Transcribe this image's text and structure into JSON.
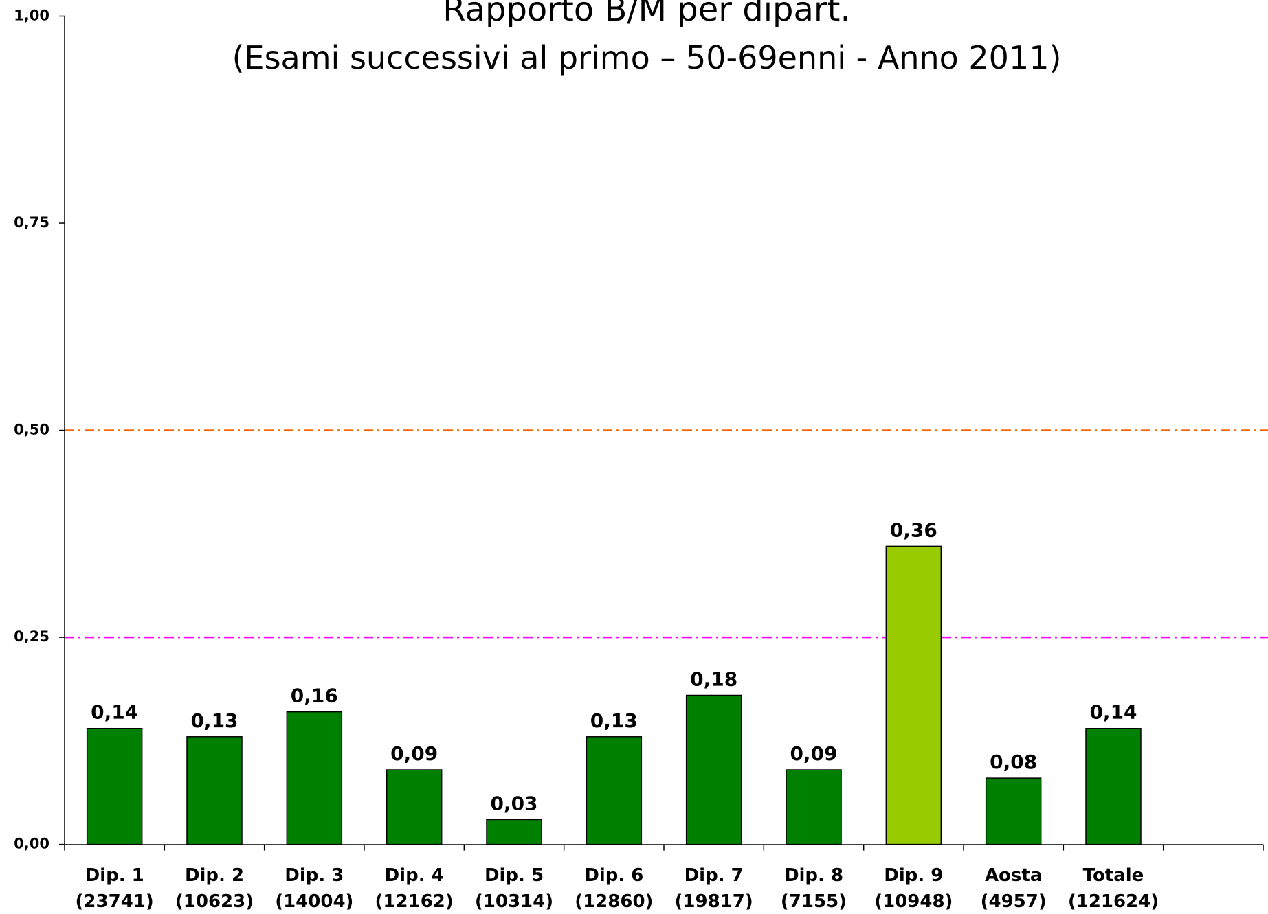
{
  "chart_data": {
    "type": "bar",
    "title": "Rapporto B/M per dipart.",
    "subtitle": "(Esami successivi al primo – 50-69enni - Anno 2011)",
    "categories": [
      "Dip. 1",
      "Dip. 2",
      "Dip. 3",
      "Dip. 4",
      "Dip. 5",
      "Dip. 6",
      "Dip. 7",
      "Dip. 8",
      "Dip. 9",
      "Aosta",
      "Totale",
      null
    ],
    "category_counts": [
      "(23741)",
      "(10623)",
      "(14004)",
      "(12162)",
      "(10314)",
      "(12860)",
      "(19817)",
      "(7155)",
      "(10948)",
      "(4957)",
      "(121624)",
      null
    ],
    "values": [
      0.14,
      0.13,
      0.16,
      0.09,
      0.03,
      0.13,
      0.18,
      0.09,
      0.36,
      0.08,
      0.14,
      null
    ],
    "value_labels": [
      "0,14",
      "0,13",
      "0,16",
      "0,09",
      "0,03",
      "0,13",
      "0,18",
      "0,09",
      "0,36",
      "0,08",
      "0,14",
      null
    ],
    "colors": [
      "#008000",
      "#008000",
      "#008000",
      "#008000",
      "#008000",
      "#008000",
      "#008000",
      "#008000",
      "#99cc00",
      "#008000",
      "#008000",
      null
    ],
    "ylim": [
      0,
      1
    ],
    "yticks": [
      {
        "value": 0,
        "label": "0,00"
      },
      {
        "value": 0.25,
        "label": "0,25"
      },
      {
        "value": 0.5,
        "label": "0,50"
      },
      {
        "value": 0.75,
        "label": "0,75"
      },
      {
        "value": 1,
        "label": "1,00"
      }
    ],
    "reference_lines": [
      {
        "value": 0.5,
        "color": "#ff6600"
      },
      {
        "value": 0.25,
        "color": "#ff00ff"
      }
    ],
    "grid": false
  }
}
